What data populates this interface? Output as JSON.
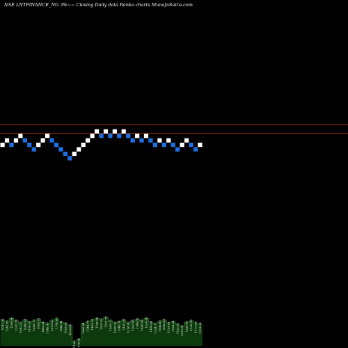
{
  "chart_data": {
    "type": "renko",
    "title": "NSE LNTFINANCE_NG 3%~~ Closing Daily data Renko  charts MunafaSutra.com",
    "colors": {
      "up": "#ffffff",
      "down": "#1e6fe0",
      "background": "#000000",
      "reference_line": "#8b2a18",
      "volume_fill": "#0c3a0c",
      "volume_line": "#2e7d2e"
    },
    "reference_lines": [
      4,
      2
    ],
    "bricks": [
      {
        "dir": "up",
        "level": 0
      },
      {
        "dir": "up",
        "level": 1
      },
      {
        "dir": "down",
        "level": 0
      },
      {
        "dir": "up",
        "level": 1
      },
      {
        "dir": "up",
        "level": 2
      },
      {
        "dir": "down",
        "level": 1
      },
      {
        "dir": "down",
        "level": 0
      },
      {
        "dir": "down",
        "level": -1
      },
      {
        "dir": "up",
        "level": 0
      },
      {
        "dir": "up",
        "level": 1
      },
      {
        "dir": "up",
        "level": 2
      },
      {
        "dir": "down",
        "level": 1
      },
      {
        "dir": "down",
        "level": 0
      },
      {
        "dir": "down",
        "level": -1
      },
      {
        "dir": "down",
        "level": -2
      },
      {
        "dir": "down",
        "level": -3
      },
      {
        "dir": "up",
        "level": -2
      },
      {
        "dir": "up",
        "level": -1
      },
      {
        "dir": "up",
        "level": 0
      },
      {
        "dir": "up",
        "level": 1
      },
      {
        "dir": "up",
        "level": 2
      },
      {
        "dir": "up",
        "level": 3
      },
      {
        "dir": "down",
        "level": 2
      },
      {
        "dir": "up",
        "level": 3
      },
      {
        "dir": "down",
        "level": 2
      },
      {
        "dir": "up",
        "level": 3
      },
      {
        "dir": "down",
        "level": 2
      },
      {
        "dir": "up",
        "level": 3
      },
      {
        "dir": "down",
        "level": 2
      },
      {
        "dir": "down",
        "level": 1
      },
      {
        "dir": "up",
        "level": 2
      },
      {
        "dir": "down",
        "level": 1
      },
      {
        "dir": "up",
        "level": 2
      },
      {
        "dir": "down",
        "level": 1
      },
      {
        "dir": "down",
        "level": 0
      },
      {
        "dir": "up",
        "level": 1
      },
      {
        "dir": "down",
        "level": 0
      },
      {
        "dir": "up",
        "level": 1
      },
      {
        "dir": "down",
        "level": 0
      },
      {
        "dir": "down",
        "level": -1
      },
      {
        "dir": "up",
        "level": 0
      },
      {
        "dir": "up",
        "level": 1
      },
      {
        "dir": "down",
        "level": 0
      },
      {
        "dir": "down",
        "level": -1
      },
      {
        "dir": "up",
        "level": 0
      }
    ],
    "volume_relative": [
      0.62,
      0.58,
      0.66,
      0.6,
      0.55,
      0.62,
      0.57,
      0.6,
      0.64,
      0.56,
      0.53,
      0.6,
      0.65,
      0.58,
      0.54,
      0.49,
      0.1,
      0.16,
      0.53,
      0.58,
      0.62,
      0.66,
      0.63,
      0.68,
      0.6,
      0.55,
      0.58,
      0.62,
      0.55,
      0.6,
      0.64,
      0.6,
      0.66,
      0.57,
      0.53,
      0.58,
      0.62,
      0.55,
      0.58,
      0.52,
      0.47,
      0.57,
      0.6,
      0.55,
      0.53
    ],
    "volume_labels": [
      "1042.00",
      "1141.05",
      "1168.60",
      "1102.76",
      "1043.25",
      "1040.85",
      "1114.05",
      "1208.79",
      "1093.73",
      "1062.00",
      "1146.40",
      "1015.33",
      "1140.80",
      "1040.41",
      "1036.90",
      "1012.05",
      "921.80",
      "976.95",
      "1066.84",
      "1144.75",
      "1165.50",
      "1190.06",
      "1107.00",
      "1121.70",
      "1068.13",
      "1208.30",
      "1140.14",
      "1134.00",
      "1158.00",
      "1203.45",
      "1146.60",
      "1028.46",
      "1234.89",
      "1160.83",
      "1124.77",
      "1106.60",
      "1050.40",
      "1154.98",
      "1169.24",
      "1125.01",
      "1219.30",
      "1226.40",
      "1108.50",
      "1175.95",
      "1131.33"
    ]
  }
}
